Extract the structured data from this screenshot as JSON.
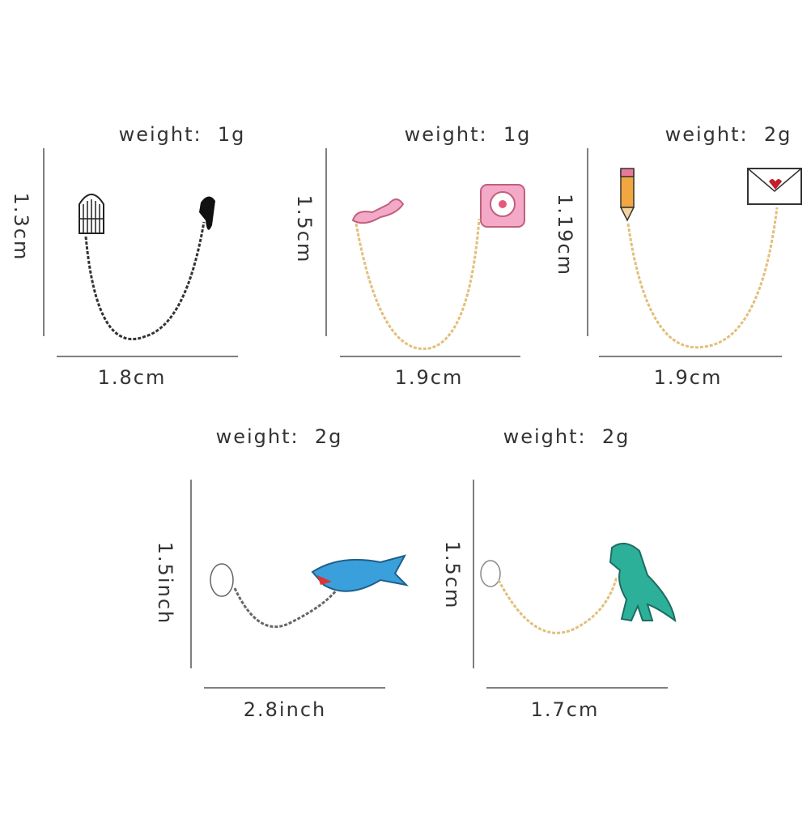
{
  "items": [
    {
      "weight": "weight:  1g",
      "height": "1.3cm",
      "width": "1.8cm"
    },
    {
      "weight": "weight:  1g",
      "height": "1.5cm",
      "width": "1.9cm"
    },
    {
      "weight": "weight:  2g",
      "height": "1.19cm",
      "width": "1.9cm"
    },
    {
      "weight": "weight:  2g",
      "height": "1.5inch",
      "width": "2.8inch"
    },
    {
      "weight": "weight:  2g",
      "height": "1.5cm",
      "width": "1.7cm"
    }
  ]
}
